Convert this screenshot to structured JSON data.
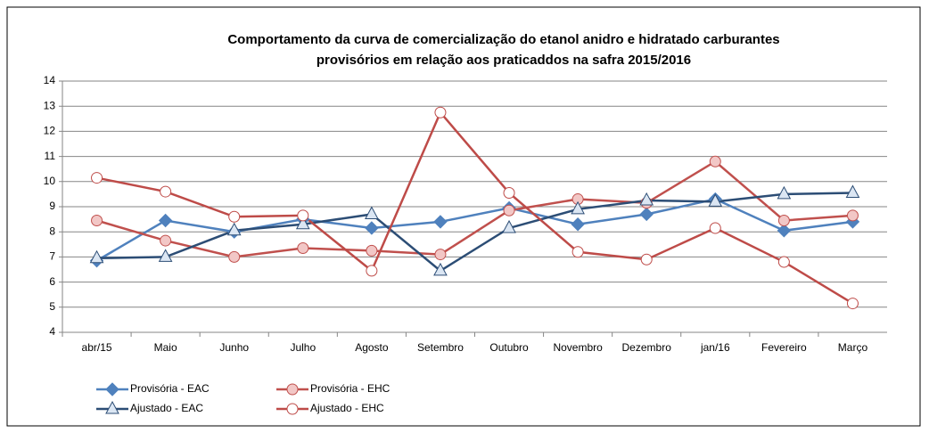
{
  "chart_data": {
    "type": "line",
    "title": [
      "Comportamento da curva de comercialização do etanol  anidro e hidratado  carburantes",
      "provisórios em relação aos praticaddos na safra 2015/2016"
    ],
    "categories": [
      "abr/15",
      "Maio",
      "Junho",
      "Julho",
      "Agosto",
      "Setembro",
      "Outubro",
      "Novembro",
      "Dezembro",
      "jan/16",
      "Fevereiro",
      "Março"
    ],
    "series": [
      {
        "name": "Provisória - EAC",
        "color": "#4f81bd",
        "marker": "diamond",
        "marker_fill": "#4f81bd",
        "values": [
          6.85,
          8.45,
          8.0,
          8.5,
          8.15,
          8.4,
          8.95,
          8.3,
          8.7,
          9.3,
          8.05,
          8.4
        ]
      },
      {
        "name": "Provisória - EHC",
        "color": "#c0504d",
        "marker": "circle",
        "marker_fill": "#f2c7c6",
        "values": [
          8.45,
          7.65,
          7.0,
          7.35,
          7.25,
          7.1,
          8.85,
          9.3,
          9.15,
          10.8,
          8.45,
          8.65
        ]
      },
      {
        "name": "Ajustado - EAC",
        "color": "#2c4d75",
        "marker": "triangle",
        "marker_fill": "#dbe6f3",
        "values": [
          6.95,
          7.0,
          8.05,
          8.3,
          8.7,
          6.45,
          8.15,
          8.9,
          9.25,
          9.2,
          9.5,
          9.55
        ]
      },
      {
        "name": "Ajustado - EHC",
        "color": "#be4b48",
        "marker": "circle",
        "marker_fill": "#ffffff",
        "values": [
          10.15,
          9.6,
          8.6,
          8.65,
          6.45,
          12.75,
          9.55,
          7.2,
          6.9,
          8.15,
          6.8,
          5.15
        ]
      }
    ],
    "ylim": [
      4,
      14
    ],
    "yticks": [
      4,
      5,
      6,
      7,
      8,
      9,
      10,
      11,
      12,
      13,
      14
    ],
    "grid": true,
    "legend": "bottom"
  }
}
